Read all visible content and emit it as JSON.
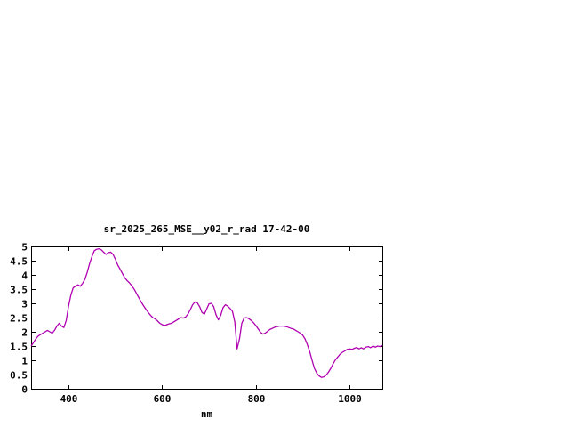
{
  "page": {
    "background": "#ffffff"
  },
  "chart_data": {
    "type": "line",
    "title": "sr_2025_265_MSE__y02_r_rad 17-42-00",
    "xlabel": "nm",
    "ylabel": "",
    "xlim": [
      320,
      1070
    ],
    "ylim": [
      0,
      5
    ],
    "x_ticks": [
      400,
      600,
      800,
      1000
    ],
    "y_ticks": [
      0,
      0.5,
      1,
      1.5,
      2,
      2.5,
      3,
      3.5,
      4,
      4.5,
      5
    ],
    "y_tick_labels": [
      "0",
      "0.5",
      "1",
      "1.5",
      "2",
      "2.5",
      "3",
      "3.5",
      "4",
      "4.5",
      "5"
    ],
    "grid": false,
    "legend": "none",
    "line_color": "#b000b0",
    "axis_color": "#000000",
    "series": [
      {
        "name": "sr_2025_265_MSE__y02_r_rad",
        "x": [
          320,
          325,
          330,
          335,
          340,
          345,
          350,
          355,
          360,
          365,
          370,
          375,
          380,
          385,
          390,
          395,
          400,
          405,
          410,
          415,
          420,
          425,
          430,
          435,
          440,
          445,
          450,
          455,
          460,
          465,
          470,
          475,
          480,
          485,
          490,
          495,
          500,
          505,
          510,
          515,
          520,
          525,
          530,
          535,
          540,
          545,
          550,
          555,
          560,
          565,
          570,
          575,
          580,
          585,
          590,
          595,
          600,
          605,
          610,
          615,
          620,
          625,
          630,
          635,
          640,
          645,
          650,
          655,
          660,
          665,
          670,
          675,
          680,
          685,
          690,
          695,
          700,
          705,
          710,
          715,
          720,
          725,
          730,
          735,
          740,
          745,
          750,
          755,
          760,
          765,
          770,
          775,
          780,
          785,
          790,
          795,
          800,
          805,
          810,
          815,
          820,
          825,
          830,
          835,
          840,
          845,
          850,
          855,
          860,
          865,
          870,
          875,
          880,
          885,
          890,
          895,
          900,
          905,
          910,
          915,
          920,
          925,
          930,
          935,
          940,
          945,
          950,
          955,
          960,
          965,
          970,
          975,
          980,
          985,
          990,
          995,
          1000,
          1005,
          1010,
          1015,
          1020,
          1025,
          1030,
          1035,
          1040,
          1045,
          1050,
          1055,
          1060,
          1065,
          1070
        ],
        "y": [
          1.5,
          1.62,
          1.75,
          1.85,
          1.9,
          1.95,
          2.0,
          2.05,
          2.0,
          1.95,
          2.05,
          2.2,
          2.3,
          2.2,
          2.15,
          2.4,
          2.9,
          3.3,
          3.55,
          3.6,
          3.65,
          3.6,
          3.7,
          3.85,
          4.1,
          4.4,
          4.65,
          4.85,
          4.9,
          4.92,
          4.88,
          4.8,
          4.72,
          4.78,
          4.8,
          4.72,
          4.55,
          4.35,
          4.2,
          4.05,
          3.9,
          3.8,
          3.72,
          3.62,
          3.5,
          3.35,
          3.2,
          3.05,
          2.92,
          2.8,
          2.68,
          2.58,
          2.5,
          2.45,
          2.38,
          2.3,
          2.25,
          2.22,
          2.25,
          2.28,
          2.3,
          2.35,
          2.4,
          2.45,
          2.5,
          2.48,
          2.52,
          2.62,
          2.78,
          2.95,
          3.05,
          3.02,
          2.88,
          2.68,
          2.62,
          2.8,
          2.98,
          3.0,
          2.88,
          2.6,
          2.42,
          2.58,
          2.85,
          2.95,
          2.9,
          2.82,
          2.72,
          2.35,
          1.4,
          1.75,
          2.3,
          2.48,
          2.5,
          2.46,
          2.4,
          2.32,
          2.22,
          2.1,
          1.98,
          1.92,
          1.95,
          2.02,
          2.08,
          2.12,
          2.16,
          2.18,
          2.2,
          2.2,
          2.2,
          2.18,
          2.15,
          2.12,
          2.1,
          2.05,
          2.0,
          1.95,
          1.88,
          1.75,
          1.55,
          1.3,
          1.0,
          0.72,
          0.55,
          0.45,
          0.4,
          0.42,
          0.48,
          0.58,
          0.72,
          0.88,
          1.02,
          1.12,
          1.22,
          1.28,
          1.33,
          1.38,
          1.4,
          1.38,
          1.42,
          1.45,
          1.4,
          1.44,
          1.4,
          1.46,
          1.48,
          1.44,
          1.5,
          1.46,
          1.5,
          1.48,
          1.52
        ]
      }
    ]
  }
}
